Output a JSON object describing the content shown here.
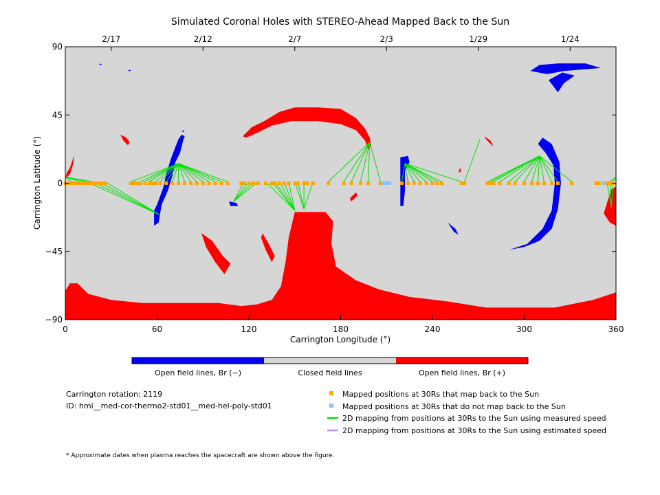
{
  "chart_data": {
    "type": "map",
    "title": "Simulated Coronal Holes with STEREO-Ahead Mapped Back to the Sun",
    "xlabel": "Carrington Longitude (°)",
    "ylabel": "Carrington Latitude (°)",
    "xlim": [
      0,
      360
    ],
    "ylim": [
      -90,
      90
    ],
    "x_ticks": [
      0,
      60,
      120,
      180,
      240,
      300,
      360
    ],
    "y_ticks": [
      90,
      45,
      0,
      -45,
      -90
    ],
    "date_ticks": [
      {
        "label": "2/17",
        "lon": 30
      },
      {
        "label": "2/12",
        "lon": 90
      },
      {
        "label": "2/7",
        "lon": 150
      },
      {
        "label": "2/3",
        "lon": 210
      },
      {
        "label": "1/29",
        "lon": 270
      },
      {
        "label": "1/24",
        "lon": 330
      }
    ],
    "colors": {
      "closed": "#d6d6d6",
      "open_negative": "#0000ee",
      "open_positive": "#ff0000",
      "mapped": "#ffa500",
      "unmapped": "#87bfff",
      "measured_line": "#00e000",
      "estimated_line": "#b58cff"
    },
    "regions": {
      "positive": [
        [
          [
            0,
            -90
          ],
          [
            0,
            -71
          ],
          [
            3,
            -66
          ],
          [
            8,
            -66
          ],
          [
            15,
            -73
          ],
          [
            30,
            -77
          ],
          [
            50,
            -79
          ],
          [
            70,
            -79
          ],
          [
            100,
            -79
          ],
          [
            115,
            -81
          ],
          [
            125,
            -80
          ],
          [
            135,
            -77
          ],
          [
            141,
            -68
          ],
          [
            144,
            -52
          ],
          [
            146,
            -36
          ],
          [
            150,
            -19
          ],
          [
            170,
            -19
          ],
          [
            175,
            -25
          ],
          [
            174,
            -40
          ],
          [
            177,
            -55
          ],
          [
            190,
            -64
          ],
          [
            205,
            -70
          ],
          [
            225,
            -75
          ],
          [
            250,
            -78
          ],
          [
            275,
            -82
          ],
          [
            300,
            -82
          ],
          [
            320,
            -82
          ],
          [
            345,
            -77
          ],
          [
            360,
            -72
          ],
          [
            360,
            -90
          ]
        ],
        [
          [
            89,
            -33
          ],
          [
            96,
            -38
          ],
          [
            103,
            -48
          ],
          [
            108,
            -53
          ],
          [
            104,
            -60
          ],
          [
            98,
            -52
          ],
          [
            92,
            -42
          ]
        ],
        [
          [
            129,
            -33
          ],
          [
            133,
            -40
          ],
          [
            137,
            -48
          ],
          [
            135,
            -52
          ],
          [
            131,
            -44
          ],
          [
            128,
            -36
          ]
        ],
        [
          [
            116,
            31
          ],
          [
            122,
            37
          ],
          [
            130,
            41
          ],
          [
            140,
            47
          ],
          [
            150,
            50
          ],
          [
            165,
            50
          ],
          [
            180,
            49
          ],
          [
            190,
            43
          ],
          [
            196,
            36
          ],
          [
            199,
            30
          ],
          [
            200,
            25
          ],
          [
            198,
            22
          ],
          [
            196,
            28
          ],
          [
            190,
            35
          ],
          [
            180,
            39
          ],
          [
            165,
            41
          ],
          [
            148,
            41
          ],
          [
            135,
            38
          ],
          [
            125,
            33
          ],
          [
            118,
            30
          ]
        ],
        [
          [
            36,
            32
          ],
          [
            40,
            30
          ],
          [
            42,
            27
          ],
          [
            41,
            25
          ],
          [
            38,
            28
          ]
        ],
        [
          [
            0,
            3
          ],
          [
            3,
            6
          ],
          [
            5,
            12
          ],
          [
            6,
            18
          ],
          [
            7,
            20
          ],
          [
            5,
            16
          ],
          [
            3,
            10
          ],
          [
            1,
            7
          ]
        ],
        [
          [
            274,
            31
          ],
          [
            278,
            28
          ],
          [
            280,
            24
          ],
          [
            278,
            26
          ],
          [
            275,
            29
          ]
        ],
        [
          [
            355,
            -10
          ],
          [
            357,
            -4
          ],
          [
            359,
            -3
          ],
          [
            360,
            -2
          ],
          [
            360,
            -28
          ],
          [
            356,
            -26
          ],
          [
            352,
            -20
          ]
        ],
        [
          [
            187,
            -12
          ],
          [
            191,
            -8
          ],
          [
            190,
            -6
          ],
          [
            186,
            -10
          ]
        ],
        [
          [
            257,
            7
          ],
          [
            258,
            10
          ],
          [
            259,
            8
          ]
        ]
      ],
      "negative": [
        [
          [
            61,
            -26
          ],
          [
            63,
            -14
          ],
          [
            67,
            -5
          ],
          [
            70,
            5
          ],
          [
            72,
            14
          ],
          [
            75,
            20
          ],
          [
            77,
            28
          ],
          [
            78,
            31
          ],
          [
            76,
            32
          ],
          [
            74,
            29
          ],
          [
            72,
            24
          ],
          [
            69,
            16
          ],
          [
            66,
            6
          ],
          [
            64,
            -3
          ],
          [
            60,
            -14
          ],
          [
            58,
            -18
          ],
          [
            58,
            -28
          ]
        ],
        [
          [
            312,
            30
          ],
          [
            318,
            26
          ],
          [
            323,
            14
          ],
          [
            324,
            0
          ],
          [
            322,
            -17
          ],
          [
            318,
            -30
          ],
          [
            310,
            -38
          ],
          [
            300,
            -42
          ],
          [
            290,
            -44
          ],
          [
            302,
            -40
          ],
          [
            312,
            -30
          ],
          [
            318,
            -18
          ],
          [
            320,
            0
          ],
          [
            319,
            12
          ],
          [
            314,
            20
          ],
          [
            309,
            26
          ]
        ],
        [
          [
            304,
            74
          ],
          [
            315,
            72
          ],
          [
            326,
            74
          ],
          [
            350,
            76
          ],
          [
            340,
            79
          ],
          [
            322,
            79
          ],
          [
            310,
            78
          ]
        ],
        [
          [
            316,
            68
          ],
          [
            322,
            60
          ],
          [
            326,
            66
          ],
          [
            333,
            71
          ],
          [
            325,
            73
          ]
        ],
        [
          [
            219,
            17
          ],
          [
            224,
            18
          ],
          [
            225,
            14
          ],
          [
            222,
            8
          ],
          [
            222,
            -5
          ],
          [
            221,
            -15
          ],
          [
            219,
            -15
          ],
          [
            219,
            5
          ]
        ],
        [
          [
            107,
            -12
          ],
          [
            112,
            -13
          ],
          [
            113,
            -15
          ],
          [
            108,
            -15
          ]
        ],
        [
          [
            250,
            -26
          ],
          [
            255,
            -30
          ],
          [
            257,
            -34
          ],
          [
            254,
            -32
          ]
        ],
        [
          [
            22,
            78
          ],
          [
            23,
            79
          ],
          [
            24,
            78
          ]
        ],
        [
          [
            41,
            74
          ],
          [
            42,
            75
          ],
          [
            43,
            74
          ]
        ],
        [
          [
            76,
            34
          ],
          [
            77,
            35
          ],
          [
            78,
            34
          ]
        ]
      ]
    },
    "mapped_points": [
      0,
      2,
      4,
      6,
      8,
      10,
      12,
      14,
      16,
      18,
      20,
      22,
      24,
      26,
      43,
      45,
      47,
      49,
      52,
      55,
      57,
      59,
      62,
      66,
      70,
      74,
      78,
      82,
      86,
      90,
      94,
      98,
      102,
      106,
      115,
      117,
      120,
      123,
      126,
      131,
      135,
      137,
      140,
      143,
      146,
      150,
      152,
      156,
      158,
      162,
      172,
      182,
      187,
      193,
      198,
      206,
      220,
      224,
      228,
      232,
      236,
      240,
      243,
      246,
      259,
      261,
      276,
      278,
      280,
      284,
      290,
      294,
      300,
      305,
      309,
      313,
      318,
      322,
      331,
      347,
      349,
      354,
      356,
      358
    ],
    "unmapped_points": [
      208,
      210,
      212,
      352
    ],
    "measured_mappings": [
      {
        "from": [
          [
            0,
            1
          ],
          [
            4,
            1
          ],
          [
            10,
            1
          ],
          [
            14,
            1
          ],
          [
            18,
            1
          ]
        ],
        "to": [
          0,
          4
        ]
      },
      {
        "from": [
          [
            14,
            1
          ],
          [
            18,
            1
          ],
          [
            22,
            1
          ],
          [
            26,
            1
          ]
        ],
        "to": [
          62,
          -21
        ]
      },
      {
        "from": [
          [
            43,
            1
          ],
          [
            49,
            1
          ],
          [
            52,
            1
          ],
          [
            55,
            1
          ],
          [
            59,
            1
          ],
          [
            62,
            1
          ],
          [
            66,
            1
          ],
          [
            70,
            1
          ],
          [
            74,
            1
          ],
          [
            78,
            1
          ],
          [
            82,
            1
          ],
          [
            86,
            1
          ],
          [
            90,
            1
          ],
          [
            94,
            1
          ],
          [
            98,
            1
          ],
          [
            102,
            1
          ],
          [
            106,
            1
          ]
        ],
        "to": [
          74,
          13
        ]
      },
      {
        "from": [
          [
            117,
            1
          ],
          [
            120,
            1
          ],
          [
            123,
            1
          ],
          [
            126,
            1
          ]
        ],
        "to": [
          110,
          -12
        ]
      },
      {
        "from": [
          [
            131,
            1
          ],
          [
            135,
            1
          ],
          [
            137,
            1
          ],
          [
            140,
            1
          ],
          [
            143,
            1
          ],
          [
            146,
            1
          ]
        ],
        "to": [
          150,
          -18
        ]
      },
      {
        "from": [
          [
            150,
            1
          ],
          [
            152,
            1
          ],
          [
            156,
            1
          ],
          [
            162,
            1
          ]
        ],
        "to": [
          156,
          -17
        ]
      },
      {
        "from": [
          [
            172,
            1
          ],
          [
            182,
            1
          ],
          [
            187,
            1
          ],
          [
            193,
            1
          ],
          [
            198,
            1
          ]
        ],
        "to": [
          199,
          27
        ]
      },
      {
        "from": [
          [
            206,
            1
          ]
        ],
        "to": [
          199,
          27
        ]
      },
      {
        "from": [
          [
            220,
            1
          ],
          [
            224,
            1
          ],
          [
            228,
            1
          ],
          [
            232,
            1
          ],
          [
            236,
            1
          ],
          [
            240,
            1
          ],
          [
            243,
            1
          ],
          [
            246,
            1
          ],
          [
            259,
            1
          ]
        ],
        "to": [
          222,
          13
        ]
      },
      {
        "from": [
          [
            261,
            1
          ]
        ],
        "to": [
          271,
          29
        ]
      },
      {
        "from": [
          [
            276,
            1
          ],
          [
            278,
            1
          ],
          [
            280,
            1
          ],
          [
            284,
            1
          ],
          [
            290,
            1
          ],
          [
            294,
            1
          ],
          [
            300,
            1
          ],
          [
            305,
            1
          ],
          [
            309,
            1
          ],
          [
            313,
            1
          ],
          [
            318,
            1
          ],
          [
            322,
            1
          ],
          [
            331,
            1
          ]
        ],
        "to": [
          310,
          18
        ]
      },
      {
        "from": [
          [
            354,
            1
          ],
          [
            356,
            1
          ],
          [
            358,
            1
          ]
        ],
        "to": [
          357,
          -16
        ]
      },
      {
        "from": [
          [
            356,
            1
          ],
          [
            358,
            1
          ],
          [
            360,
            1
          ]
        ],
        "to": [
          360,
          4
        ]
      }
    ],
    "colorbar": [
      {
        "label": "Open field lines, Br (−)",
        "color": "#0000ee"
      },
      {
        "label": "Closed field lines",
        "color": "#d6d6d6"
      },
      {
        "label": "Open field lines, Br (+)",
        "color": "#ff0000"
      }
    ]
  },
  "info": {
    "rotation": "Carrington rotation: 2119",
    "id": "ID: hmi__med-cor-thermo2-std01__med-hel-poly-std01"
  },
  "legend": {
    "mapped": "Mapped positions at 30Rs that map back to the Sun",
    "unmapped": "Mapped positions at 30Rs that do not map back to the Sun",
    "measured": "2D mapping from positions at 30Rs to the Sun using measured speed",
    "estimated": "2D mapping from positions at 30Rs to the Sun using estimated speed"
  },
  "footnote": "* Approximate dates when plasma reaches the spacecraft are shown above the figure."
}
